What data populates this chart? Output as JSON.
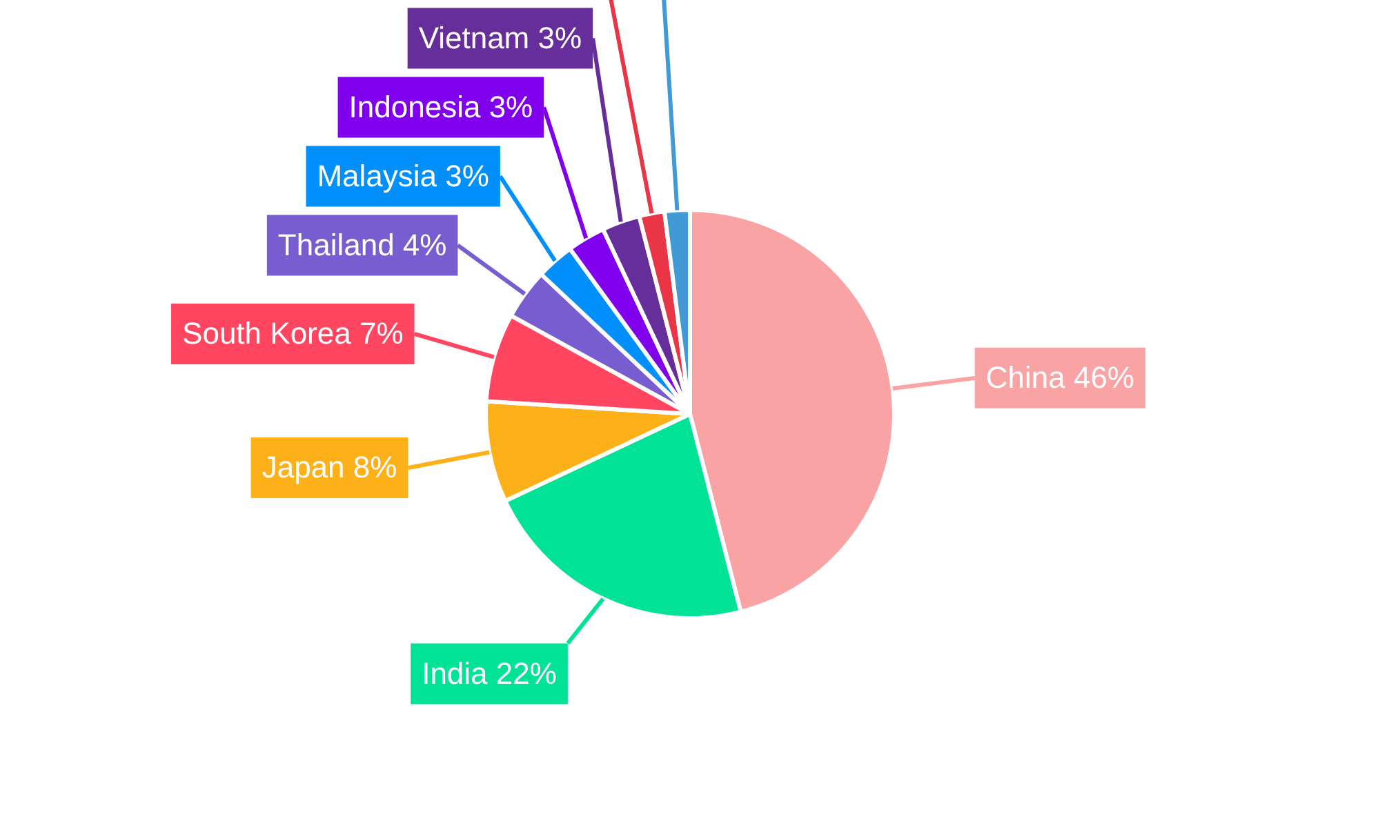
{
  "chart_data": {
    "type": "pie",
    "categories": [
      "China",
      "India",
      "Japan",
      "South Korea",
      "Thailand",
      "Malaysia",
      "Indonesia",
      "Vietnam",
      null,
      null
    ],
    "values": [
      46,
      22,
      8,
      7,
      4,
      3,
      3,
      3,
      2,
      2
    ],
    "value_labels": [
      "46%",
      "22%",
      "8%",
      "7%",
      "4%",
      "3%",
      "3%",
      "3%",
      null,
      null
    ],
    "colors": [
      "#f9a3a4",
      "#00e396",
      "#feb019",
      "#ff4560",
      "#775dd0",
      "#008ffb",
      "#8000ee",
      "#662e9b",
      "#ea3546",
      "#4299d6"
    ]
  }
}
